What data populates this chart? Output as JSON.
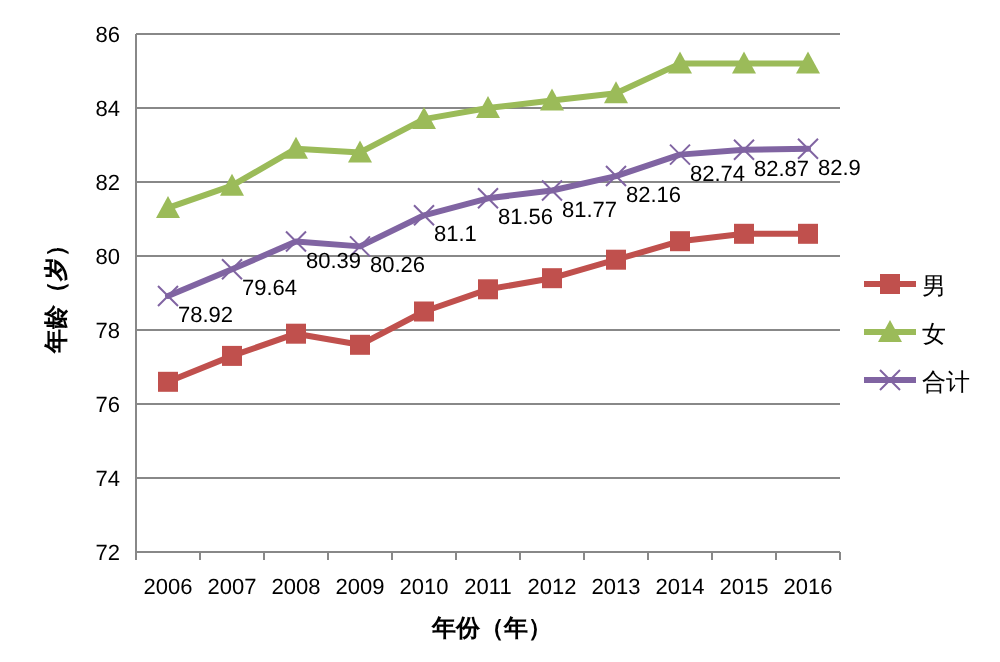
{
  "chart_data": {
    "type": "line",
    "xlabel": "年份（年）",
    "ylabel": "年龄（岁）",
    "categories": [
      "2006",
      "2007",
      "2008",
      "2009",
      "2010",
      "2011",
      "2012",
      "2013",
      "2014",
      "2015",
      "2016"
    ],
    "ylim": [
      72,
      86
    ],
    "yticks": [
      72,
      74,
      76,
      78,
      80,
      82,
      84,
      86
    ],
    "grid": "y",
    "legend": "right",
    "line_style": "solid",
    "series": [
      {
        "name": "男",
        "color": "#c0504d",
        "marker": "square",
        "values": [
          76.6,
          77.3,
          77.9,
          77.6,
          78.5,
          79.1,
          79.4,
          79.9,
          80.4,
          80.6,
          80.6
        ]
      },
      {
        "name": "女",
        "color": "#9bbb59",
        "marker": "triangle",
        "values": [
          81.3,
          81.9,
          82.9,
          82.8,
          83.7,
          84.0,
          84.2,
          84.4,
          85.2,
          85.2,
          85.2
        ]
      },
      {
        "name": "合计",
        "color": "#8064a2",
        "marker": "cross",
        "data_labels": true,
        "values": [
          78.92,
          79.64,
          80.39,
          80.26,
          81.1,
          81.56,
          81.77,
          82.16,
          82.74,
          82.87,
          82.9
        ]
      }
    ]
  }
}
